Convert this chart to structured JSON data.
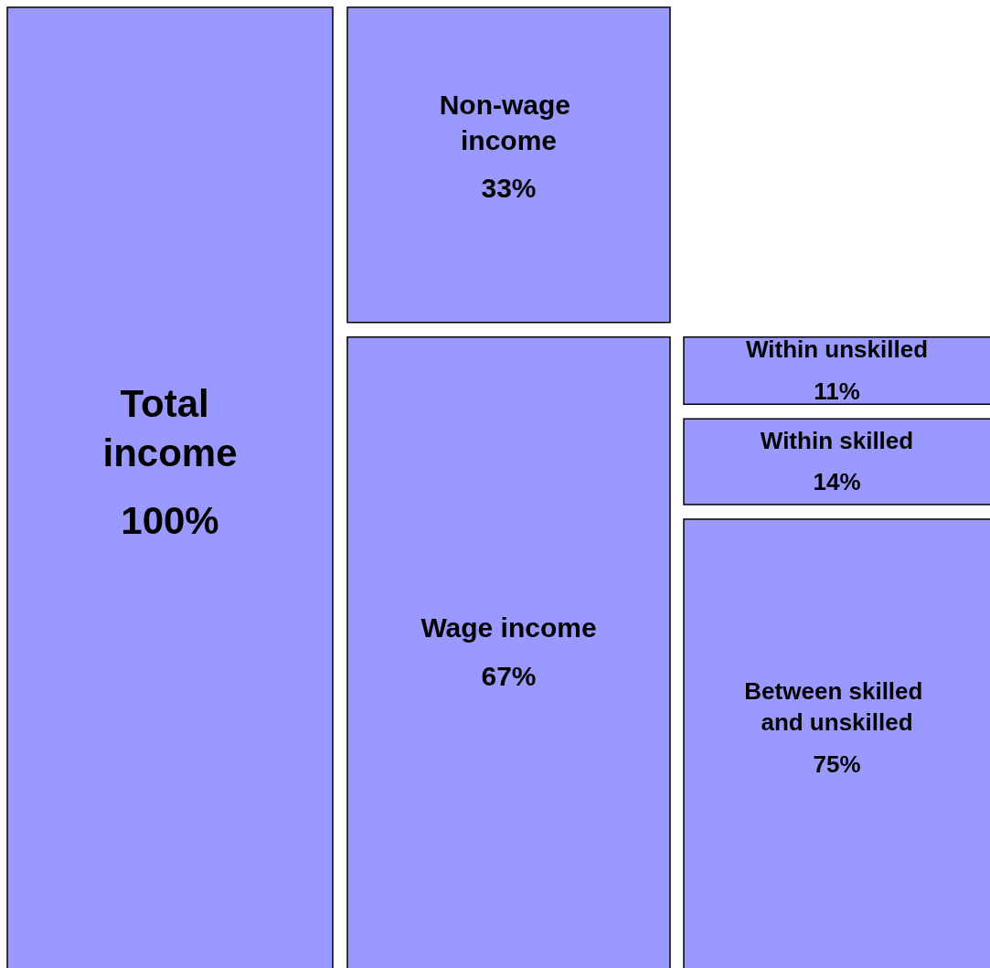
{
  "chart_data": {
    "type": "other",
    "categories": [
      "Total income",
      "Non-wage income",
      "Wage income",
      "Within unskilled",
      "Within skilled",
      "Between skilled and unskilled"
    ],
    "values": [
      100,
      33,
      67,
      11,
      14,
      75
    ],
    "value_labels": [
      "100%",
      "33%",
      "67%",
      "11%",
      "14%",
      "75%"
    ],
    "color": "#9999ff"
  }
}
